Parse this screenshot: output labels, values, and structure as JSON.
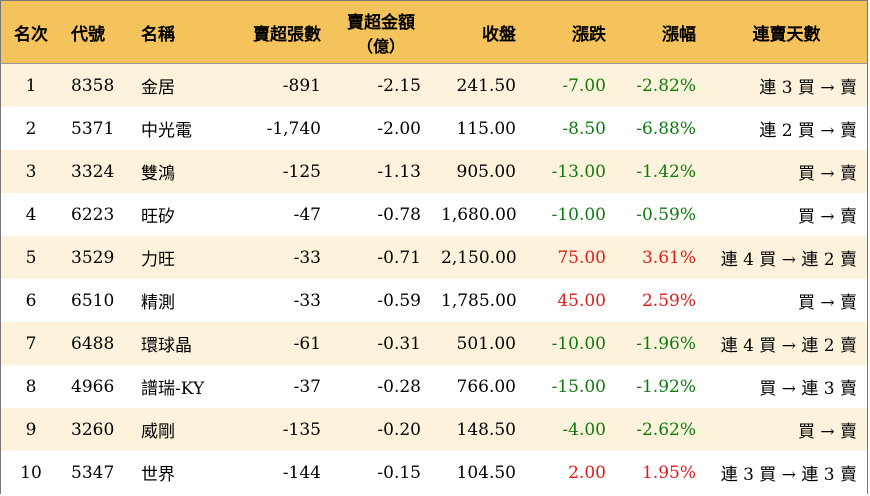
{
  "headers": {
    "rank": "名次",
    "code": "代號",
    "name": "名稱",
    "sell_sheets": "賣超張數",
    "sell_amount_line1": "賣超金額",
    "sell_amount_line2": "（億）",
    "close": "收盤",
    "change": "漲跌",
    "change_pct": "漲幅",
    "streak": "連賣天數"
  },
  "rows": [
    {
      "rank": "1",
      "code": "8358",
      "name": "金居",
      "sheets": "-891",
      "amount": "-2.15",
      "close": "241.50",
      "change": "-7.00",
      "pct": "-2.82%",
      "streak": "連 3 買 → 賣",
      "dir": "neg"
    },
    {
      "rank": "2",
      "code": "5371",
      "name": "中光電",
      "sheets": "-1,740",
      "amount": "-2.00",
      "close": "115.00",
      "change": "-8.50",
      "pct": "-6.88%",
      "streak": "連 2 買 → 賣",
      "dir": "neg"
    },
    {
      "rank": "3",
      "code": "3324",
      "name": "雙鴻",
      "sheets": "-125",
      "amount": "-1.13",
      "close": "905.00",
      "change": "-13.00",
      "pct": "-1.42%",
      "streak": "買 → 賣",
      "dir": "neg"
    },
    {
      "rank": "4",
      "code": "6223",
      "name": "旺矽",
      "sheets": "-47",
      "amount": "-0.78",
      "close": "1,680.00",
      "change": "-10.00",
      "pct": "-0.59%",
      "streak": "買 → 賣",
      "dir": "neg"
    },
    {
      "rank": "5",
      "code": "3529",
      "name": "力旺",
      "sheets": "-33",
      "amount": "-0.71",
      "close": "2,150.00",
      "change": "75.00",
      "pct": "3.61%",
      "streak": "連 4 買 → 連 2 賣",
      "dir": "pos"
    },
    {
      "rank": "6",
      "code": "6510",
      "name": "精測",
      "sheets": "-33",
      "amount": "-0.59",
      "close": "1,785.00",
      "change": "45.00",
      "pct": "2.59%",
      "streak": "買 → 賣",
      "dir": "pos"
    },
    {
      "rank": "7",
      "code": "6488",
      "name": "環球晶",
      "sheets": "-61",
      "amount": "-0.31",
      "close": "501.00",
      "change": "-10.00",
      "pct": "-1.96%",
      "streak": "連 4 買 → 連 2 賣",
      "dir": "neg"
    },
    {
      "rank": "8",
      "code": "4966",
      "name": "譜瑞-KY",
      "sheets": "-37",
      "amount": "-0.28",
      "close": "766.00",
      "change": "-15.00",
      "pct": "-1.92%",
      "streak": "買 → 連 3 賣",
      "dir": "neg"
    },
    {
      "rank": "9",
      "code": "3260",
      "name": "威剛",
      "sheets": "-135",
      "amount": "-0.20",
      "close": "148.50",
      "change": "-4.00",
      "pct": "-2.62%",
      "streak": "買 → 賣",
      "dir": "neg"
    },
    {
      "rank": "10",
      "code": "5347",
      "name": "世界",
      "sheets": "-144",
      "amount": "-0.15",
      "close": "104.50",
      "change": "2.00",
      "pct": "1.95%",
      "streak": "連 3 買 → 連 3 賣",
      "dir": "pos"
    }
  ],
  "colors": {
    "header_bg": "#f5c35b",
    "stripe_bg": "#fdf3dc",
    "down": "#0f7a0f",
    "up": "#e01b1b"
  }
}
